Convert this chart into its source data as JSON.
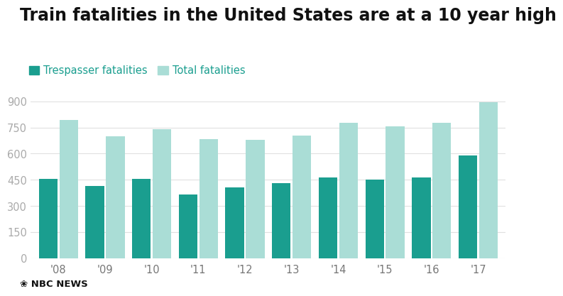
{
  "title": "Train fatalities in the United States are at a 10 year high",
  "years": [
    "'08",
    "'09",
    "'10",
    "'11",
    "'12",
    "'13",
    "'14",
    "'15",
    "'16",
    "'17"
  ],
  "trespasser_fatalities": [
    455,
    415,
    455,
    365,
    405,
    430,
    465,
    450,
    462,
    590
  ],
  "total_fatalities": [
    795,
    700,
    740,
    685,
    680,
    705,
    775,
    755,
    775,
    895
  ],
  "trespasser_color": "#1a9e8f",
  "total_color": "#aaddd6",
  "background_color": "#ffffff",
  "title_fontsize": 17,
  "legend_label_trespasser": "Trespasser fatalities",
  "legend_label_total": "Total fatalities",
  "legend_color_trespasser": "#1a9e8f",
  "legend_color_total": "#aaddd6",
  "ylabel_ticks": [
    0,
    150,
    300,
    450,
    600,
    750,
    900
  ],
  "ylim": [
    0,
    950
  ],
  "grid_color": "#e0e0e0",
  "bar_width": 0.4,
  "bar_gap": 0.04
}
